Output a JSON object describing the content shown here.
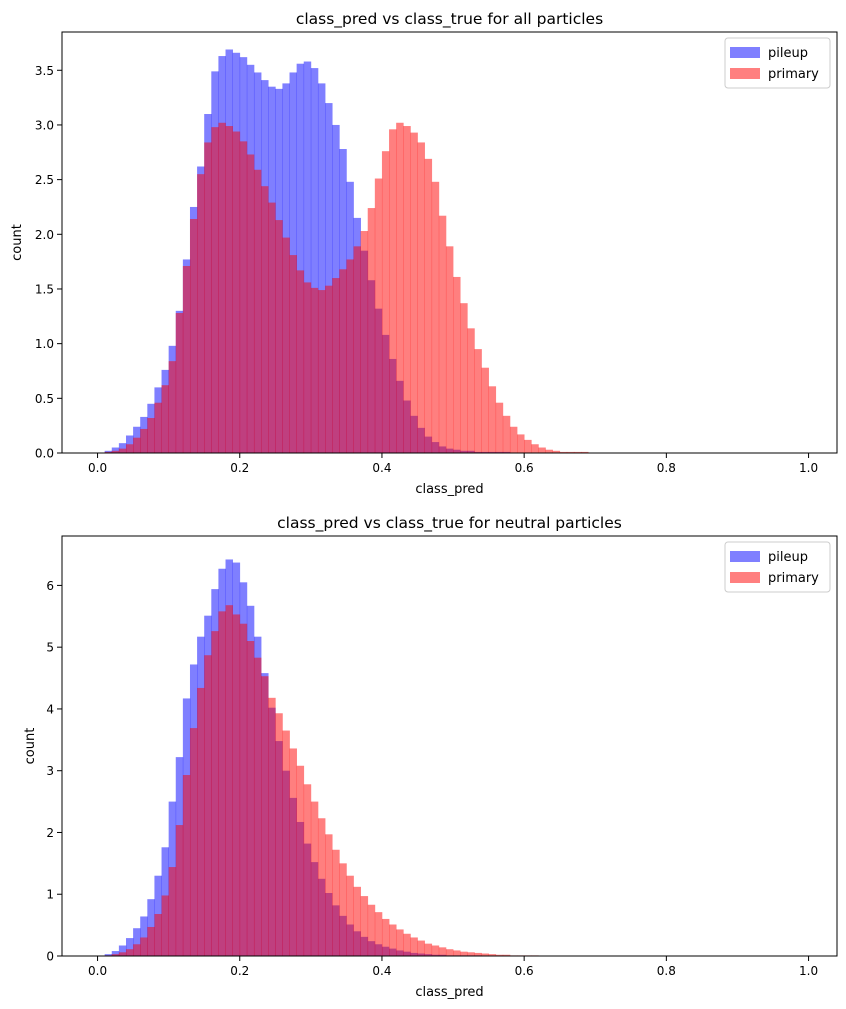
{
  "chart_data": [
    {
      "type": "histogram",
      "title": "class_pred vs class_true for all particles",
      "xlabel": "class_pred",
      "ylabel": "count",
      "xlim": [
        -0.05,
        1.04
      ],
      "ylim": [
        0,
        3.85
      ],
      "xticks": [
        "0.0",
        "0.2",
        "0.4",
        "0.6",
        "0.8",
        "1.0"
      ],
      "yticks": [
        "0.0",
        "0.5",
        "1.0",
        "1.5",
        "2.0",
        "2.5",
        "3.0",
        "3.5"
      ],
      "grid": false,
      "legend_position": "top-right",
      "bins": {
        "start": 0.0,
        "width": 0.01,
        "count": 100
      },
      "series": [
        {
          "name": "pileup",
          "color": "#0000ff",
          "opacity": 0.5,
          "values": [
            0.0,
            0.02,
            0.05,
            0.09,
            0.16,
            0.24,
            0.33,
            0.45,
            0.6,
            0.76,
            0.98,
            1.3,
            1.77,
            2.25,
            2.62,
            3.1,
            3.49,
            3.63,
            3.69,
            3.66,
            3.62,
            3.55,
            3.48,
            3.41,
            3.35,
            3.33,
            3.38,
            3.48,
            3.56,
            3.58,
            3.52,
            3.38,
            3.2,
            3.0,
            2.78,
            2.48,
            2.15,
            1.85,
            1.58,
            1.32,
            1.08,
            0.86,
            0.66,
            0.48,
            0.34,
            0.23,
            0.15,
            0.1,
            0.06,
            0.04,
            0.03,
            0.02,
            0.02,
            0.01,
            0.01,
            0.01,
            0.01,
            0.01,
            0.0,
            0.0,
            0.0,
            0.0,
            0.0,
            0.0,
            0.0,
            0.0,
            0.0,
            0.0,
            0.0,
            0.0,
            0.0,
            0.0,
            0.0,
            0.0,
            0.0,
            0.0,
            0.0,
            0.0,
            0.0,
            0.0,
            0.0,
            0.0,
            0.0,
            0.0,
            0.0,
            0.0,
            0.0,
            0.0,
            0.0,
            0.0,
            0.0,
            0.0,
            0.0,
            0.0,
            0.0,
            0.0,
            0.0,
            0.0,
            0.0,
            0.0
          ]
        },
        {
          "name": "primary",
          "color": "#ff0000",
          "opacity": 0.5,
          "values": [
            0.0,
            0.01,
            0.02,
            0.04,
            0.08,
            0.14,
            0.22,
            0.32,
            0.46,
            0.62,
            0.84,
            1.28,
            1.71,
            2.14,
            2.55,
            2.84,
            2.98,
            3.02,
            2.99,
            2.94,
            2.85,
            2.73,
            2.59,
            2.44,
            2.29,
            2.13,
            1.97,
            1.81,
            1.67,
            1.56,
            1.51,
            1.49,
            1.53,
            1.6,
            1.68,
            1.77,
            1.89,
            2.03,
            2.24,
            2.51,
            2.76,
            2.96,
            3.02,
            2.99,
            2.93,
            2.84,
            2.69,
            2.48,
            2.17,
            1.89,
            1.61,
            1.37,
            1.14,
            0.95,
            0.78,
            0.61,
            0.46,
            0.34,
            0.24,
            0.17,
            0.12,
            0.08,
            0.05,
            0.03,
            0.02,
            0.01,
            0.01,
            0.01,
            0.01,
            0.0,
            0.0,
            0.0,
            0.0,
            0.0,
            0.0,
            0.0,
            0.0,
            0.0,
            0.0,
            0.0,
            0.0,
            0.0,
            0.0,
            0.0,
            0.0,
            0.0,
            0.0,
            0.0,
            0.0,
            0.0,
            0.0,
            0.0,
            0.0,
            0.0,
            0.0,
            0.0,
            0.0,
            0.0,
            0.0,
            0.0
          ]
        }
      ]
    },
    {
      "type": "histogram",
      "title": "class_pred vs class_true for neutral particles",
      "xlabel": "class_pred",
      "ylabel": "count",
      "xlim": [
        -0.05,
        1.04
      ],
      "ylim": [
        0,
        6.8
      ],
      "xticks": [
        "0.0",
        "0.2",
        "0.4",
        "0.6",
        "0.8",
        "1.0"
      ],
      "yticks": [
        "0",
        "1",
        "2",
        "3",
        "4",
        "5",
        "6"
      ],
      "grid": false,
      "legend_position": "top-right",
      "bins": {
        "start": 0.0,
        "width": 0.01,
        "count": 100
      },
      "series": [
        {
          "name": "pileup",
          "color": "#0000ff",
          "opacity": 0.5,
          "values": [
            0.0,
            0.03,
            0.08,
            0.17,
            0.29,
            0.45,
            0.64,
            0.92,
            1.3,
            1.76,
            2.5,
            3.22,
            4.17,
            4.72,
            5.17,
            5.51,
            5.94,
            6.27,
            6.42,
            6.37,
            6.05,
            5.67,
            5.17,
            4.58,
            4.02,
            3.48,
            3.0,
            2.56,
            2.17,
            1.82,
            1.52,
            1.25,
            1.02,
            0.82,
            0.65,
            0.51,
            0.4,
            0.31,
            0.24,
            0.19,
            0.15,
            0.12,
            0.09,
            0.07,
            0.05,
            0.04,
            0.03,
            0.02,
            0.02,
            0.01,
            0.01,
            0.01,
            0.01,
            0.01,
            0.0,
            0.0,
            0.0,
            0.0,
            0.0,
            0.0,
            0.0,
            0.0,
            0.0,
            0.0,
            0.0,
            0.0,
            0.0,
            0.0,
            0.0,
            0.0,
            0.0,
            0.0,
            0.0,
            0.0,
            0.0,
            0.0,
            0.0,
            0.0,
            0.0,
            0.0,
            0.0,
            0.0,
            0.0,
            0.0,
            0.0,
            0.0,
            0.0,
            0.0,
            0.0,
            0.0,
            0.0,
            0.0,
            0.0,
            0.0,
            0.0,
            0.0,
            0.0,
            0.0,
            0.0,
            0.0
          ]
        },
        {
          "name": "primary",
          "color": "#ff0000",
          "opacity": 0.5,
          "values": [
            0.0,
            0.01,
            0.03,
            0.06,
            0.11,
            0.19,
            0.3,
            0.47,
            0.68,
            0.98,
            1.44,
            2.12,
            2.93,
            3.69,
            4.34,
            4.87,
            5.26,
            5.58,
            5.68,
            5.53,
            5.38,
            5.1,
            4.83,
            4.53,
            4.18,
            3.93,
            3.65,
            3.36,
            3.08,
            2.78,
            2.5,
            2.23,
            1.97,
            1.72,
            1.5,
            1.3,
            1.12,
            0.97,
            0.83,
            0.71,
            0.6,
            0.51,
            0.43,
            0.36,
            0.3,
            0.25,
            0.2,
            0.17,
            0.14,
            0.11,
            0.09,
            0.07,
            0.06,
            0.05,
            0.04,
            0.03,
            0.02,
            0.02,
            0.01,
            0.01,
            0.01,
            0.01,
            0.0,
            0.0,
            0.0,
            0.0,
            0.0,
            0.0,
            0.0,
            0.0,
            0.0,
            0.0,
            0.0,
            0.0,
            0.0,
            0.0,
            0.0,
            0.0,
            0.0,
            0.0,
            0.0,
            0.0,
            0.0,
            0.0,
            0.0,
            0.0,
            0.0,
            0.0,
            0.0,
            0.0,
            0.0,
            0.0,
            0.0,
            0.0,
            0.0,
            0.0,
            0.0,
            0.0,
            0.0,
            0.0
          ]
        }
      ]
    }
  ]
}
